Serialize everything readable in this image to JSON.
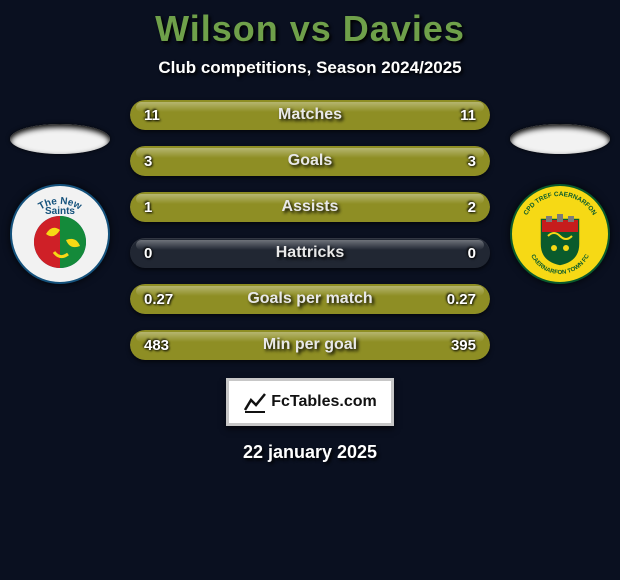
{
  "background_color": "#0a1020",
  "title": {
    "text": "Wilson vs Davies",
    "color": "#6fa04a",
    "fontsize": 36,
    "fontweight": 800
  },
  "subtitle": {
    "text": "Club competitions, Season 2024/2025",
    "color": "#ffffff",
    "fontsize": 17
  },
  "bar_style": {
    "track_color": "#212733",
    "left_color": "#8e8e24",
    "right_color": "#8e8e24",
    "height": 30,
    "radius": 15
  },
  "stats": [
    {
      "label": "Matches",
      "left_value": "11",
      "right_value": "11",
      "left_pct": 50,
      "right_pct": 50
    },
    {
      "label": "Goals",
      "left_value": "3",
      "right_value": "3",
      "left_pct": 50,
      "right_pct": 50
    },
    {
      "label": "Assists",
      "left_value": "1",
      "right_value": "2",
      "left_pct": 33,
      "right_pct": 67
    },
    {
      "label": "Hattricks",
      "left_value": "0",
      "right_value": "0",
      "left_pct": 0,
      "right_pct": 0
    },
    {
      "label": "Goals per match",
      "left_value": "0.27",
      "right_value": "0.27",
      "left_pct": 50,
      "right_pct": 50
    },
    {
      "label": "Min per goal",
      "left_value": "483",
      "right_value": "395",
      "left_pct": 55,
      "right_pct": 45
    }
  ],
  "crests": {
    "left": {
      "name": "the-new-saints",
      "ring_bg": "#f2f2f2",
      "ring_text": "The New Saints",
      "ring_text_color": "#15527c",
      "inner_left": "#cf2027",
      "inner_right": "#148a3a",
      "ring_border": "#15527c"
    },
    "right": {
      "name": "caernarfon-town",
      "ring_bg": "#f6d915",
      "ring_text": "CPD TREF CAERNARFON",
      "ring_text_color": "#0a5b2c",
      "inner": "#0a5b2c",
      "shield_top": "#c61c1c"
    }
  },
  "footer": {
    "brand_text": "FcTables.com",
    "icon_name": "chart-line-icon",
    "bg": "#ffffff",
    "border": "#c7c7c7",
    "text_color": "#111111"
  },
  "date": {
    "text": "22 january 2025",
    "color": "#ffffff",
    "fontsize": 18
  }
}
